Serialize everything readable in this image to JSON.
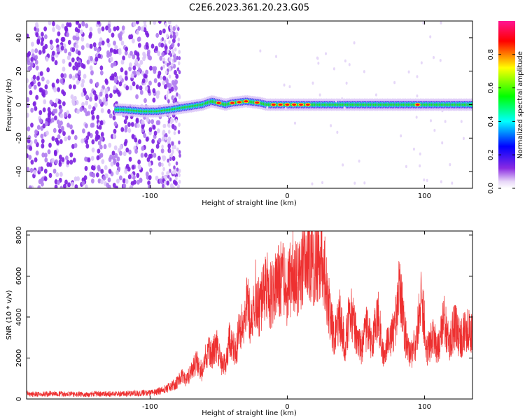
{
  "title": "C2E6.2023.361.20.23.G05",
  "chart_data": [
    {
      "type": "heatmap",
      "xlabel": "Height of straight line (km)",
      "ylabel": "Frequency (Hz)",
      "xlim": [
        -190,
        135
      ],
      "ylim": [
        -50,
        50
      ],
      "x_ticks": [
        -100,
        0,
        100
      ],
      "y_ticks": [
        -40,
        -20,
        0,
        20,
        40
      ],
      "colorbar": {
        "label": "Normalized spectral amplitude",
        "range": [
          0.0,
          1.0
        ],
        "ticks": [
          0.0,
          0.2,
          0.4,
          0.6,
          0.8
        ],
        "colormap": [
          "#ffffff",
          "#8a2be2",
          "#0000ff",
          "#00ffff",
          "#00ff00",
          "#ffff00",
          "#ff0000",
          "#ff1493"
        ]
      },
      "ridge": {
        "x": [
          -120,
          -105,
          -95,
          -85,
          -78,
          -70,
          -62,
          -55,
          -50,
          -45,
          -40,
          -30,
          -20,
          -15,
          -10,
          0,
          10,
          20,
          40,
          60,
          80,
          100,
          120,
          135
        ],
        "y": [
          -3,
          -4,
          -4,
          -3,
          -2,
          -1,
          0,
          2,
          1,
          0,
          1,
          2,
          1,
          0,
          0,
          0,
          0,
          0,
          0,
          0,
          0,
          0,
          0,
          0
        ]
      }
    },
    {
      "type": "line",
      "xlabel": "Height of straight line (km)",
      "ylabel": "SNR (10 * v/v)",
      "xlim": [
        -190,
        135
      ],
      "ylim": [
        0,
        8200
      ],
      "x_ticks": [
        -100,
        0,
        100
      ],
      "y_ticks": [
        0,
        2000,
        4000,
        6000,
        8000
      ],
      "series": [
        {
          "color": "#ee3030",
          "x": [
            -190,
            -180,
            -170,
            -160,
            -150,
            -140,
            -130,
            -120,
            -110,
            -100,
            -95,
            -90,
            -85,
            -80,
            -77,
            -74,
            -70,
            -66,
            -62,
            -58,
            -55,
            -52,
            -48,
            -45,
            -42,
            -38,
            -35,
            -32,
            -29,
            -26,
            -23,
            -20,
            -16,
            -12,
            -8,
            -4,
            0,
            4,
            8,
            12,
            16,
            20,
            24,
            27,
            30,
            34,
            38,
            42,
            46,
            50,
            54,
            58,
            62,
            66,
            70,
            74,
            78,
            82,
            86,
            90,
            94,
            98,
            102,
            106,
            110,
            114,
            118,
            122,
            126,
            130,
            135
          ],
          "y": [
            250,
            220,
            260,
            240,
            230,
            250,
            240,
            250,
            280,
            300,
            350,
            450,
            600,
            800,
            1100,
            900,
            1400,
            1800,
            1300,
            2400,
            2100,
            2800,
            1800,
            1600,
            3000,
            2200,
            3300,
            3600,
            4600,
            3600,
            5200,
            4300,
            5600,
            5000,
            5500,
            5900,
            5200,
            6300,
            5700,
            6700,
            7000,
            6500,
            7200,
            6200,
            4600,
            3100,
            4100,
            2700,
            4400,
            3100,
            2400,
            3600,
            2600,
            4200,
            2000,
            2900,
            3400,
            5400,
            3000,
            2000,
            2900,
            5000,
            2400,
            3100,
            2300,
            3900,
            2700,
            3600,
            2900,
            3400,
            3100
          ]
        }
      ]
    }
  ]
}
